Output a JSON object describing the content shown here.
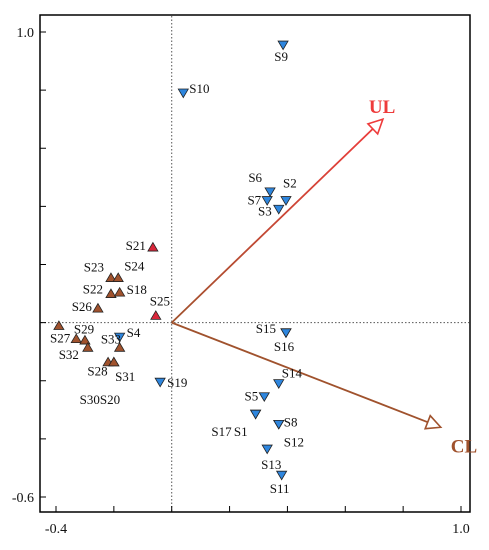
{
  "chart_data": {
    "type": "scatter",
    "xlim": [
      -0.4,
      1.0
    ],
    "ylim": [
      -0.6,
      1.0
    ],
    "x_ticks": [
      {
        "value": -0.4,
        "label": "-0.4"
      },
      {
        "value": 1.0,
        "label": "1.0"
      }
    ],
    "y_ticks": [
      {
        "value": 1.0,
        "label": "1.0"
      },
      {
        "value": -0.6,
        "label": "-0.6"
      }
    ],
    "reference_lines": {
      "x": 0,
      "y": 0
    },
    "vectors": [
      {
        "name": "UL",
        "x": 0.73,
        "y": 0.7,
        "color": "#ee3b3b"
      },
      {
        "name": "CL",
        "x": 0.93,
        "y": -0.36,
        "color": "#a0522d"
      }
    ],
    "series": [
      {
        "marker": "triangle-down",
        "color": "#2e86de",
        "points": [
          {
            "label": "S9",
            "x": 0.385,
            "y": 0.955
          },
          {
            "label": "S10",
            "x": 0.04,
            "y": 0.79
          },
          {
            "label": "S6",
            "x": 0.34,
            "y": 0.45
          },
          {
            "label": "S2",
            "x": 0.395,
            "y": 0.42
          },
          {
            "label": "S7",
            "x": 0.33,
            "y": 0.42
          },
          {
            "label": "S3",
            "x": 0.37,
            "y": 0.39
          },
          {
            "label": "S15",
            "x": 0.395,
            "y": -0.035
          },
          {
            "label": "S16",
            "x": 0.395,
            "y": -0.035
          },
          {
            "label": "S4",
            "x": -0.18,
            "y": -0.05
          },
          {
            "label": "S19",
            "x": -0.04,
            "y": -0.205
          },
          {
            "label": "S5",
            "x": 0.32,
            "y": -0.255
          },
          {
            "label": "S14",
            "x": 0.37,
            "y": -0.21
          },
          {
            "label": "S1",
            "x": 0.29,
            "y": -0.315
          },
          {
            "label": "S8",
            "x": 0.37,
            "y": -0.35
          },
          {
            "label": "S17",
            "x": 0.29,
            "y": -0.315
          },
          {
            "label": "S12",
            "x": 0.37,
            "y": -0.35
          },
          {
            "label": "S13",
            "x": 0.33,
            "y": -0.435
          },
          {
            "label": "S11",
            "x": 0.38,
            "y": -0.525
          }
        ]
      },
      {
        "marker": "triangle-up",
        "color": "#a0522d",
        "points": [
          {
            "label": "S21",
            "x": -0.065,
            "y": 0.26
          },
          {
            "label": "S23",
            "x": -0.21,
            "y": 0.155
          },
          {
            "label": "S24",
            "x": -0.185,
            "y": 0.155
          },
          {
            "label": "S22",
            "x": -0.21,
            "y": 0.1
          },
          {
            "label": "S18",
            "x": -0.18,
            "y": 0.105
          },
          {
            "label": "S26",
            "x": -0.255,
            "y": 0.05
          },
          {
            "label": "S25",
            "x": -0.055,
            "y": 0.025
          },
          {
            "label": "S29",
            "x": -0.39,
            "y": -0.01
          },
          {
            "label": "S27",
            "x": -0.33,
            "y": -0.055
          },
          {
            "label": "S32",
            "x": -0.3,
            "y": -0.06
          },
          {
            "label": "S33",
            "x": -0.29,
            "y": -0.085
          },
          {
            "label": "S28",
            "x": -0.18,
            "y": -0.085
          },
          {
            "label": "S31",
            "x": -0.22,
            "y": -0.135
          },
          {
            "label": "S30",
            "x": -0.2,
            "y": -0.135
          },
          {
            "label": "S20",
            "x": -0.2,
            "y": -0.135
          }
        ]
      }
    ],
    "title": "",
    "xlabel": "",
    "ylabel": ""
  }
}
